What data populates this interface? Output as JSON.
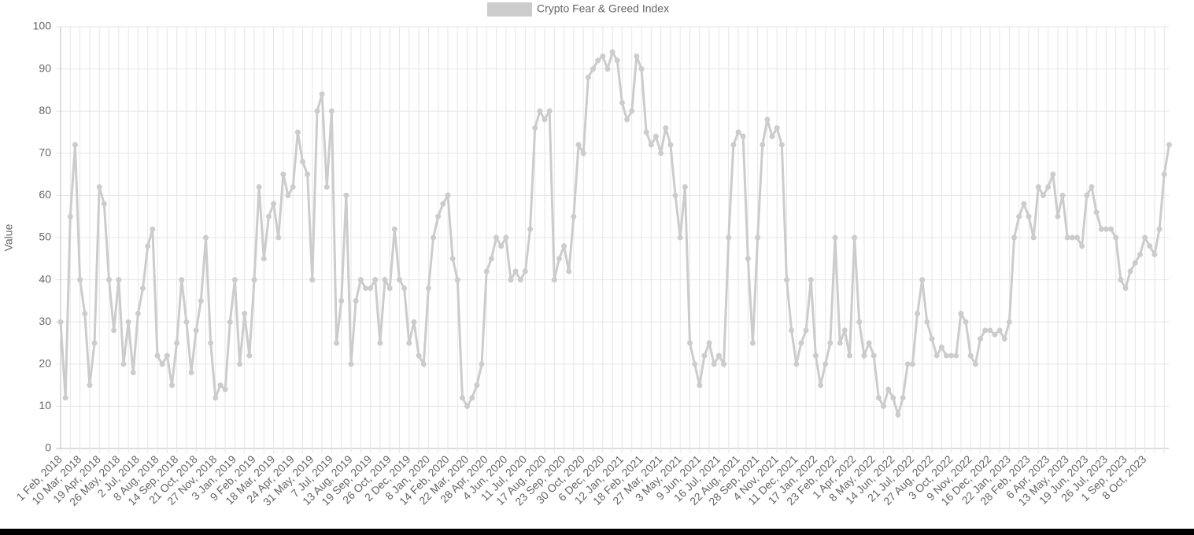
{
  "chart_data": {
    "type": "line",
    "y_label": "Value",
    "categories": [
      "1 Feb, 2018",
      null,
      null,
      null,
      "10 Mar, 2018",
      null,
      null,
      null,
      "19 Apr, 2018",
      null,
      null,
      null,
      "26 May, 2018",
      null,
      null,
      null,
      "2 Jul, 2018",
      null,
      null,
      null,
      "8 Aug, 2018",
      null,
      null,
      null,
      "14 Sep, 2018",
      null,
      null,
      null,
      "21 Oct, 2018",
      null,
      null,
      null,
      "27 Nov, 2018",
      null,
      null,
      null,
      "3 Jan, 2019",
      null,
      null,
      null,
      "9 Feb, 2019",
      null,
      null,
      null,
      "18 Mar, 2019",
      null,
      null,
      null,
      "24 Apr, 2019",
      null,
      null,
      null,
      "31 May, 2019",
      null,
      null,
      null,
      "7 Jul, 2019",
      null,
      null,
      null,
      "13 Aug, 2019",
      null,
      null,
      null,
      "19 Sep, 2019",
      null,
      null,
      null,
      "26 Oct, 2019",
      null,
      null,
      null,
      "2 Dec, 2019",
      null,
      null,
      null,
      "8 Jan, 2020",
      null,
      null,
      null,
      "14 Feb, 2020",
      null,
      null,
      null,
      "22 Mar, 2020",
      null,
      null,
      null,
      "28 Apr, 2020",
      null,
      null,
      null,
      "4 Jun, 2020",
      null,
      null,
      null,
      "11 Jul, 2020",
      null,
      null,
      null,
      "17 Aug, 2020",
      null,
      null,
      null,
      "23 Sep, 2020",
      null,
      null,
      null,
      "30 Oct, 2020",
      null,
      null,
      null,
      "6 Dec, 2020",
      null,
      null,
      null,
      "12 Jan, 2021",
      null,
      null,
      null,
      "18 Feb, 2021",
      null,
      null,
      null,
      "27 Mar, 2021",
      null,
      null,
      null,
      "3 May, 2021",
      null,
      null,
      null,
      "9 Jun, 2021",
      null,
      null,
      null,
      "16 Jul, 2021",
      null,
      null,
      null,
      "22 Aug, 2021",
      null,
      null,
      null,
      "28 Sep, 2021",
      null,
      null,
      null,
      "4 Nov, 2021",
      null,
      null,
      null,
      "11 Dec, 2021",
      null,
      null,
      null,
      "17 Jan, 2022",
      null,
      null,
      null,
      "23 Feb, 2022",
      null,
      null,
      null,
      "1 Apr, 2022",
      null,
      null,
      null,
      "8 May, 2022",
      null,
      null,
      null,
      "14 Jun, 2022",
      null,
      null,
      null,
      "21 Jul, 2022",
      null,
      null,
      null,
      "27 Aug, 2022",
      null,
      null,
      null,
      "3 Oct, 2022",
      null,
      null,
      null,
      "9 Nov, 2022",
      null,
      null,
      null,
      "16 Dec, 2022",
      null,
      null,
      null,
      "22 Jan, 2023",
      null,
      null,
      null,
      "28 Feb, 2023",
      null,
      null,
      null,
      "6 Apr, 2023",
      null,
      null,
      null,
      "13 May, 2023",
      null,
      null,
      null,
      "19 Jun, 2023",
      null,
      null,
      null,
      "26 Jul, 2023",
      null,
      null,
      null,
      "1 Sep, 2023",
      null,
      null,
      null,
      "8 Oct, 2023",
      null,
      null,
      null,
      null,
      null
    ],
    "series": [
      {
        "name": "Crypto Fear & Greed Index",
        "color": "#cccccc",
        "values": [
          30,
          12,
          55,
          72,
          40,
          32,
          15,
          25,
          62,
          58,
          40,
          28,
          40,
          20,
          30,
          18,
          32,
          38,
          48,
          52,
          22,
          20,
          22,
          15,
          25,
          40,
          30,
          18,
          28,
          35,
          50,
          25,
          12,
          15,
          14,
          30,
          40,
          20,
          32,
          22,
          40,
          62,
          45,
          55,
          58,
          50,
          65,
          60,
          62,
          75,
          68,
          65,
          40,
          80,
          84,
          62,
          80,
          25,
          35,
          60,
          20,
          35,
          40,
          38,
          38,
          40,
          25,
          40,
          38,
          52,
          40,
          38,
          25,
          30,
          22,
          20,
          38,
          50,
          55,
          58,
          60,
          45,
          40,
          12,
          10,
          12,
          15,
          20,
          42,
          45,
          50,
          48,
          50,
          40,
          42,
          40,
          42,
          52,
          76,
          80,
          78,
          80,
          40,
          45,
          48,
          42,
          55,
          72,
          70,
          88,
          90,
          92,
          93,
          90,
          94,
          92,
          82,
          78,
          80,
          93,
          90,
          75,
          72,
          74,
          70,
          76,
          72,
          60,
          50,
          62,
          25,
          20,
          15,
          22,
          25,
          20,
          22,
          20,
          50,
          72,
          75,
          74,
          45,
          25,
          50,
          72,
          78,
          74,
          76,
          72,
          40,
          28,
          20,
          25,
          28,
          40,
          22,
          15,
          20,
          25,
          50,
          25,
          28,
          22,
          50,
          30,
          22,
          25,
          22,
          12,
          10,
          14,
          12,
          8,
          12,
          20,
          20,
          32,
          40,
          30,
          26,
          22,
          24,
          22,
          22,
          22,
          32,
          30,
          22,
          20,
          26,
          28,
          28,
          27,
          28,
          26,
          30,
          50,
          55,
          58,
          55,
          50,
          62,
          60,
          62,
          65,
          55,
          60,
          50,
          50,
          50,
          48,
          60,
          62,
          56,
          52,
          52,
          52,
          50,
          40,
          38,
          42,
          44,
          46,
          50,
          48,
          46,
          52,
          65,
          72
        ]
      }
    ],
    "ylim": [
      0,
      100
    ],
    "yticks": [
      0,
      10,
      20,
      30,
      40,
      50,
      60,
      70,
      80,
      90,
      100
    ],
    "grid": true
  }
}
